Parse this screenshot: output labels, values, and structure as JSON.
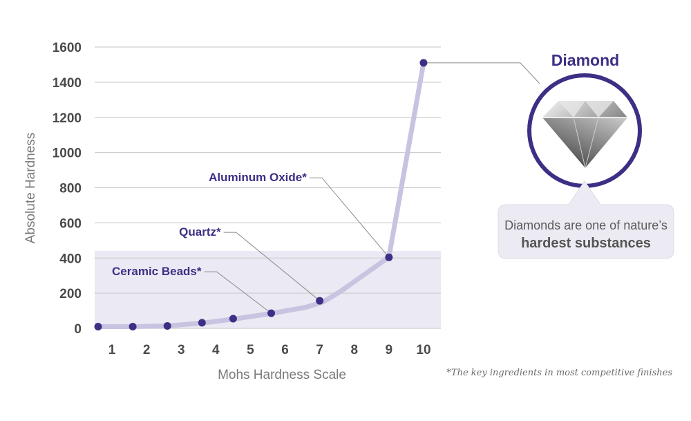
{
  "colors": {
    "accent": "#3d2f85",
    "line": "#c8c3e0",
    "band": "#ebe9f3",
    "grid": "#cfcfcf",
    "callout_bg": "#ecebf3"
  },
  "chart_data": {
    "type": "line",
    "xlabel": "Mohs Hardness Scale",
    "ylabel": "Absolute Hardness",
    "x_ticks": [
      "1",
      "2",
      "3",
      "4",
      "5",
      "6",
      "7",
      "8",
      "9",
      "10"
    ],
    "y_ticks": [
      "0",
      "200",
      "400",
      "600",
      "800",
      "1000",
      "1200",
      "1400",
      "1600"
    ],
    "ylim": [
      0,
      1600
    ],
    "xlim": [
      0.5,
      10.5
    ],
    "grid": true,
    "highlight_band": [
      0,
      440
    ],
    "curve": {
      "x": [
        0.6,
        1.6,
        2.6,
        3.6,
        4.6,
        5.6,
        6.6,
        7.1,
        7.6,
        9.0,
        10.0
      ],
      "y": [
        10,
        10,
        14,
        30,
        55,
        85,
        120,
        150,
        210,
        405,
        1510
      ]
    },
    "points": {
      "x": [
        0.6,
        1.6,
        2.6,
        3.6,
        4.5,
        5.6,
        7.0,
        9.0,
        10.0
      ],
      "y": [
        10,
        10,
        14,
        32,
        55,
        86,
        157,
        404,
        1510
      ]
    },
    "annotations": [
      {
        "text": "Ceramic Beads*",
        "point_index": 5
      },
      {
        "text": "Quartz*",
        "point_index": 6
      },
      {
        "text": "Aluminum Oxide*",
        "point_index": 7
      }
    ],
    "diamond": {
      "title": "Diamond",
      "point_index": 8,
      "callout_line1": "Diamonds are one of nature’s",
      "callout_line2": "hardest substances"
    },
    "footnote": "*The key ingredients in most competitive finishes"
  }
}
